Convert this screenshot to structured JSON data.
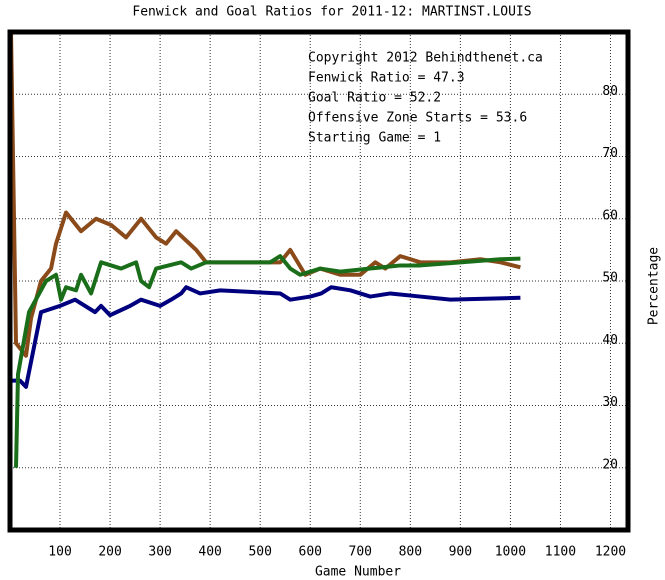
{
  "chart_data": {
    "type": "line",
    "title": "Fenwick and Goal Ratios for 2011-12: MARTINST.LOUIS",
    "x_label": "Game Number",
    "y_label": "Percentage",
    "annotations": [
      "Copyright 2012 Behindthenet.ca",
      "Starting Game = 1"
    ],
    "xlim": [
      0,
      1235
    ],
    "ylim": [
      10,
      90
    ],
    "xticks": [
      100,
      200,
      300,
      400,
      500,
      600,
      700,
      800,
      900,
      1000,
      1100,
      1200
    ],
    "yticks": [
      20,
      30,
      40,
      50,
      60,
      70,
      80
    ],
    "grid": true,
    "series": [
      {
        "name": "Fenwick Ratio = 47.3",
        "color": "#00007f",
        "x": [
          2,
          20,
          32,
          52,
          62,
          100,
          130,
          170,
          182,
          200,
          240,
          262,
          300,
          322,
          342,
          352,
          380,
          420,
          540,
          560,
          600,
          622,
          642,
          680,
          700,
          720,
          760,
          820,
          880,
          1020
        ],
        "values": [
          34,
          34,
          33,
          41,
          45,
          46,
          47,
          45,
          46,
          44.5,
          46,
          47,
          46,
          47,
          48,
          49,
          48,
          48.5,
          48,
          47,
          47.5,
          48,
          49,
          48.5,
          48,
          47.5,
          48,
          47.5,
          47,
          47.3
        ]
      },
      {
        "name": "Goal Ratio = 52.2",
        "color": "#8b4a1a",
        "x": [
          2,
          12,
          32,
          42,
          62,
          82,
          92,
          112,
          142,
          172,
          202,
          232,
          262,
          292,
          312,
          332,
          372,
          392,
          540,
          560,
          590,
          620,
          660,
          700,
          730,
          750,
          780,
          820,
          880,
          940,
          980,
          1020
        ],
        "values": [
          90,
          40,
          38,
          44,
          50,
          52,
          56,
          61,
          58,
          60,
          59,
          57,
          60,
          57,
          56,
          58,
          55,
          53,
          53,
          55,
          51,
          52,
          51,
          51,
          53,
          52,
          54,
          53,
          53,
          53.5,
          53,
          52.2
        ]
      },
      {
        "name": "Offensive Zone Starts = 53.6",
        "color": "#1a6e1a",
        "x": [
          12,
          16,
          38,
          72,
          92,
          102,
          112,
          132,
          142,
          162,
          182,
          222,
          252,
          262,
          278,
          292,
          342,
          362,
          392,
          520,
          540,
          560,
          580,
          620,
          660,
          720,
          780,
          820,
          900,
          980,
          1020
        ],
        "values": [
          20,
          35,
          45,
          50,
          51,
          47,
          49,
          48.5,
          51,
          48,
          53,
          52,
          53,
          50,
          49,
          52,
          53,
          52,
          53,
          53,
          54,
          52,
          51,
          52,
          51.5,
          52,
          52.5,
          52.5,
          53,
          53.5,
          53.6
        ]
      }
    ]
  }
}
